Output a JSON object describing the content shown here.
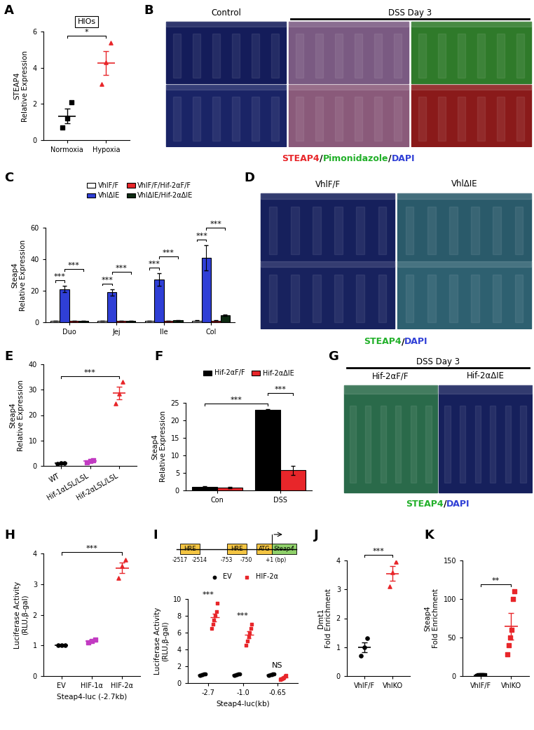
{
  "chart_data": [
    {
      "panel": "A",
      "type": "dot",
      "title": "HIOs",
      "y_label": "STEAP4\nRelative Expression",
      "categories": [
        "Normoxia",
        "Hypoxia"
      ],
      "points": [
        [
          0.7,
          1.2,
          2.1
        ],
        [
          3.1,
          4.3,
          5.4
        ]
      ],
      "values": [
        1.33,
        4.27
      ],
      "errors": [
        0.41,
        0.66
      ],
      "colors": [
        "#000000",
        "#e8262a"
      ],
      "ylim": [
        0,
        6
      ],
      "yticks": [
        0,
        2,
        4,
        6
      ],
      "significance": [
        {
          "from": "Normoxia",
          "to": "Hypoxia",
          "label": "*"
        }
      ]
    },
    {
      "panel": "B",
      "type": "image",
      "headers": [
        {
          "text": "Control",
          "columns": 1
        },
        {
          "text": "DSS Day 3",
          "columns": 2
        }
      ],
      "caption": "STEAP4/Pimonidazole/DAPI",
      "caption_colors": [
        "#e8262a",
        "#22b02a",
        "#2f3fd6"
      ]
    },
    {
      "panel": "C",
      "type": "bar",
      "y_label": "Steap4\nRelative Expression",
      "categories": [
        "Duo",
        "Jej",
        "Ile",
        "Col"
      ],
      "series": [
        {
          "name": "VhlF/F",
          "color": "#ffffff",
          "values": [
            1,
            1,
            1,
            1
          ],
          "errors": [
            0.1,
            0.1,
            0.1,
            0.2
          ]
        },
        {
          "name": "VhlΔIE",
          "color": "#2f3fd6",
          "values": [
            21,
            19,
            27,
            41
          ],
          "errors": [
            2,
            2,
            4,
            8
          ]
        },
        {
          "name": "VhlF/F/Hif-2αF/F",
          "color": "#e8262a",
          "values": [
            1,
            1,
            1,
            1
          ],
          "errors": [
            0.1,
            0.1,
            0.1,
            0.2
          ]
        },
        {
          "name": "VhlΔIE/Hif-2αΔIE",
          "color": "#0d2b12",
          "values": [
            0.8,
            0.9,
            1.2,
            4.5
          ],
          "errors": [
            0.1,
            0.1,
            0.2,
            0.5
          ]
        }
      ],
      "ylim": [
        0,
        60
      ],
      "yticks": [
        0,
        20,
        40,
        60
      ],
      "legend": "upper center",
      "significance": [
        {
          "from": [
            "Duo",
            "VhlF/F"
          ],
          "to": [
            "Duo",
            "VhlΔIE"
          ],
          "label": "***"
        },
        {
          "from": [
            "Duo",
            "VhlΔIE"
          ],
          "to": [
            "Duo",
            "VhlΔIE/Hif-2αΔIE"
          ],
          "label": "***"
        },
        {
          "from": [
            "Jej",
            "VhlF/F"
          ],
          "to": [
            "Jej",
            "VhlΔIE"
          ],
          "label": "***"
        },
        {
          "from": [
            "Jej",
            "VhlΔIE"
          ],
          "to": [
            "Jej",
            "VhlΔIE/Hif-2αΔIE"
          ],
          "label": "***"
        },
        {
          "from": [
            "Ile",
            "VhlF/F"
          ],
          "to": [
            "Ile",
            "VhlΔIE"
          ],
          "label": "***"
        },
        {
          "from": [
            "Ile",
            "VhlΔIE"
          ],
          "to": [
            "Ile",
            "VhlΔIE/Hif-2αΔIE"
          ],
          "label": "***"
        },
        {
          "from": [
            "Col",
            "VhlF/F"
          ],
          "to": [
            "Col",
            "VhlΔIE"
          ],
          "label": "***"
        },
        {
          "from": [
            "Col",
            "VhlΔIE"
          ],
          "to": [
            "Col",
            "VhlΔIE/Hif-2αΔIE"
          ],
          "label": "***"
        }
      ]
    },
    {
      "panel": "D",
      "type": "image",
      "headers": [
        {
          "text": "VhlF/F",
          "columns": 1
        },
        {
          "text": "VhlΔIE",
          "columns": 1
        }
      ],
      "caption": "STEAP4/DAPI",
      "caption_colors": [
        "#22b02a",
        "#2f3fd6"
      ]
    },
    {
      "panel": "E",
      "type": "dot",
      "y_label": "Steap4\nRelative Expression",
      "categories": [
        "WT",
        "Hif-1αLSL/LSL",
        "Hif-2αLSL/LSL"
      ],
      "points": [
        [
          0.8,
          1.0,
          1.2
        ],
        [
          1.4,
          1.8,
          2.2
        ],
        [
          24.5,
          28.5,
          33
        ]
      ],
      "values": [
        1.0,
        1.8,
        28.7
      ],
      "errors": [
        0.12,
        0.23,
        2.5
      ],
      "colors": [
        "#000000",
        "#c23bc2",
        "#e8262a"
      ],
      "ylim": [
        0,
        40
      ],
      "yticks": [
        0,
        10,
        20,
        30,
        40
      ],
      "significance": [
        {
          "from": "WT",
          "to": "Hif-2αLSL/LSL",
          "label": "***"
        }
      ]
    },
    {
      "panel": "F",
      "type": "bar",
      "y_label": "Steap4\nRelative Expression",
      "categories": [
        "Con",
        "DSS"
      ],
      "series": [
        {
          "name": "Hif-2αF/F",
          "color": "#000000",
          "values": [
            1.0,
            23.0
          ],
          "errors": [
            0.15,
            0.3
          ]
        },
        {
          "name": "Hif-2αΔIE",
          "color": "#e8262a",
          "values": [
            0.8,
            5.8
          ],
          "errors": [
            0.15,
            1.3
          ]
        }
      ],
      "ylim": [
        0,
        25
      ],
      "yticks": [
        0,
        5,
        10,
        15,
        20,
        25
      ],
      "legend": "upper center",
      "significance": [
        {
          "from": [
            "Con",
            "Hif-2αF/F"
          ],
          "to": [
            "DSS",
            "Hif-2αF/F"
          ],
          "label": "***"
        },
        {
          "from": [
            "DSS",
            "Hif-2αF/F"
          ],
          "to": [
            "DSS",
            "Hif-2αΔIE"
          ],
          "label": "***"
        }
      ]
    },
    {
      "panel": "G",
      "type": "image",
      "title": "DSS Day 3",
      "headers": [
        {
          "text": "Hif-2αF/F",
          "columns": 1
        },
        {
          "text": "Hif-2αΔIE",
          "columns": 1
        }
      ],
      "caption": "STEAP4/DAPI",
      "caption_colors": [
        "#22b02a",
        "#2f3fd6"
      ]
    },
    {
      "panel": "H",
      "type": "dot",
      "x_label": "Steap4-luc (-2.7kb)",
      "y_label": "Luciferase Activity\n(RLU,β-gal)",
      "categories": [
        "EV",
        "HIF-1α",
        "HIF-2α"
      ],
      "points": [
        [
          1.0,
          1.0,
          1.0
        ],
        [
          1.1,
          1.15,
          1.2
        ],
        [
          3.2,
          3.6,
          3.8
        ]
      ],
      "values": [
        1.0,
        1.15,
        3.53
      ],
      "errors": [
        0.01,
        0.03,
        0.18
      ],
      "colors": [
        "#000000",
        "#c23bc2",
        "#e8262a"
      ],
      "ylim": [
        0,
        4
      ],
      "yticks": [
        0,
        1,
        2,
        3,
        4
      ],
      "significance": [
        {
          "from": "EV",
          "to": "HIF-2α",
          "label": "***"
        }
      ]
    },
    {
      "panel": "I",
      "type": "diagram",
      "boxes": [
        {
          "text": "HRE",
          "labels": [
            "-2517",
            "-2514"
          ],
          "color": "#f4c542"
        },
        {
          "text": "HRE",
          "labels": [
            "-753",
            "-750"
          ],
          "color": "#f4c542"
        },
        {
          "text": "ATG",
          "color": "#f4c542"
        }
      ],
      "gene": {
        "text": "Steap4",
        "label": "+1 (bp)",
        "color": "#8fd16a"
      }
    },
    {
      "type": "dot",
      "x_label": "Steap4-luc(kb)",
      "y_label": "Luciferase Activity\n(RLU,β-gal)",
      "categories": [
        "-2.7",
        "-1.0",
        "-0.65"
      ],
      "series": [
        {
          "name": "EV",
          "color": "#000000",
          "marker": "circle",
          "points": [
            [
              0.9,
              0.95,
              1.0,
              1.0,
              1.05,
              1.1
            ],
            [
              0.9,
              0.95,
              1.0,
              1.0,
              1.05,
              1.1
            ],
            [
              0.9,
              0.95,
              1.0,
              1.0,
              1.05,
              1.1
            ]
          ],
          "values": [
            1.0,
            1.0,
            1.0
          ],
          "errors": [
            0.03,
            0.03,
            0.03
          ]
        },
        {
          "name": "HIF-2α",
          "color": "#e8262a",
          "marker": "square",
          "points": [
            [
              6.5,
              7.0,
              7.5,
              8.0,
              8.5,
              9.5
            ],
            [
              4.5,
              5.0,
              5.5,
              6.0,
              6.5,
              7.0
            ],
            [
              0.4,
              0.5,
              0.6,
              0.7,
              0.8,
              0.9
            ]
          ],
          "values": [
            7.8,
            5.75,
            0.65
          ],
          "errors": [
            0.45,
            0.4,
            0.08
          ]
        }
      ],
      "ylim": [
        0,
        10
      ],
      "yticks": [
        0,
        2,
        4,
        6,
        8,
        10
      ],
      "legend": "upper center",
      "significance": [
        {
          "category": "-2.7",
          "label": "***"
        },
        {
          "category": "-1.0",
          "label": "***"
        },
        {
          "category": "-0.65",
          "label": "NS"
        }
      ]
    },
    {
      "panel": "J",
      "type": "dot",
      "y_label": "Dmt1\nFold Enrichment",
      "categories": [
        "VhlF/F",
        "VhlKO"
      ],
      "points": [
        [
          0.7,
          1.0,
          1.3
        ],
        [
          3.1,
          3.6,
          3.95
        ]
      ],
      "values": [
        1.0,
        3.55
      ],
      "errors": [
        0.17,
        0.25
      ],
      "colors": [
        "#000000",
        "#e8262a"
      ],
      "ylim": [
        0,
        4
      ],
      "yticks": [
        0,
        1,
        2,
        3,
        4
      ],
      "significance": [
        {
          "from": "VhlF/F",
          "to": "VhlKO",
          "label": "***"
        }
      ]
    },
    {
      "panel": "K",
      "type": "dot",
      "y_label": "Steap4\nFold Enrichment",
      "categories": [
        "VhlF/F",
        "VhlKO"
      ],
      "points": [
        [
          0.3,
          0.5,
          0.6,
          0.8,
          1.0,
          1.2
        ],
        [
          28,
          40,
          50,
          60,
          100,
          110
        ]
      ],
      "values": [
        0.73,
        64.7
      ],
      "errors": [
        0.13,
        17
      ],
      "colors": [
        "#000000",
        "#e8262a"
      ],
      "ylim": [
        0,
        150
      ],
      "yticks": [
        0,
        50,
        100,
        150
      ],
      "significance": [
        {
          "from": "VhlF/F",
          "to": "VhlKO",
          "label": "**"
        }
      ]
    }
  ]
}
